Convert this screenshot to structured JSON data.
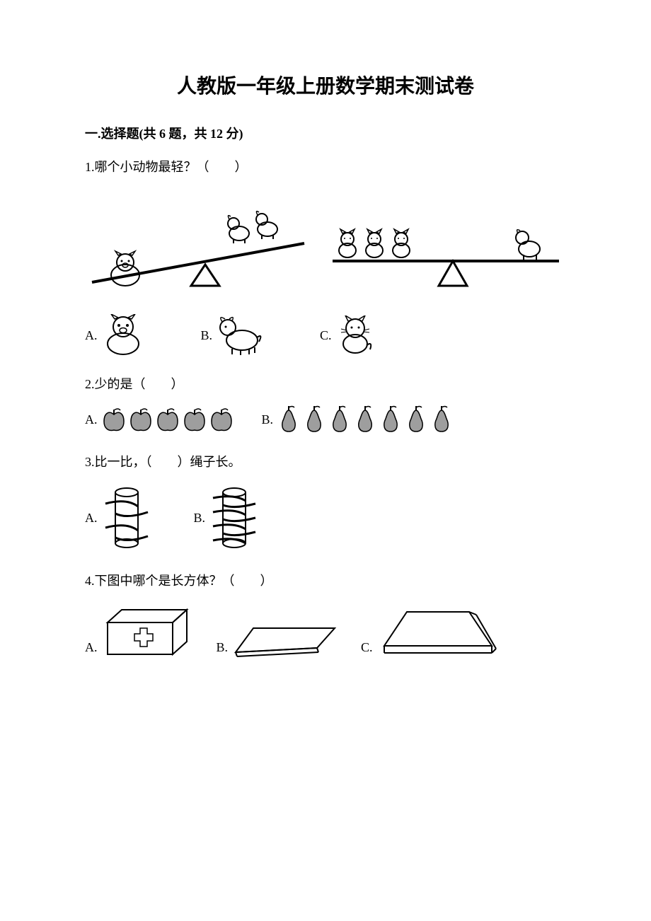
{
  "title": "人教版一年级上册数学期末测试卷",
  "section": "一.选择题(共 6 题，共 12 分)",
  "q1": {
    "text": "1.哪个小动物最轻？（　　）",
    "optA": "A.",
    "optB": "B.",
    "optC": "C."
  },
  "q2": {
    "text": "2.少的是（　　）",
    "optA": "A.",
    "optB": "B."
  },
  "q3": {
    "text": "3.比一比，（　　）绳子长。",
    "optA": "A.",
    "optB": "B."
  },
  "q4": {
    "text": "4.下图中哪个是长方体？（　　）",
    "optA": "A.",
    "optB": "B.",
    "optC": "C."
  },
  "colors": {
    "stroke": "#000000",
    "fill_gray": "#9e9e9e",
    "fill_light": "#eeeeee",
    "bg": "#ffffff"
  },
  "fruits": {
    "apples": 5,
    "pears": 7,
    "apple_fill": "#9e9e9e",
    "pear_fill": "#9e9e9e"
  }
}
